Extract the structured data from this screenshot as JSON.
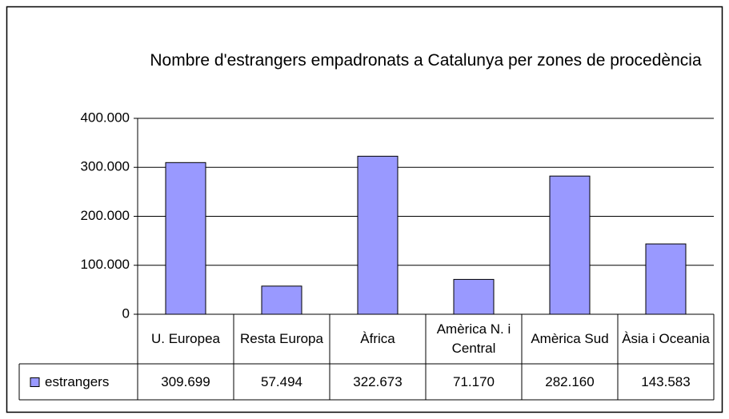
{
  "chart_data": {
    "type": "bar",
    "title": "Nombre d'estrangers empadronats a Catalunya per zones de procedència",
    "categories": [
      "U. Europea",
      "Resta Europa",
      "Àfrica",
      "Amèrica N. i Central",
      "Amèrica Sud",
      "Àsia i Oceania"
    ],
    "series": [
      {
        "name": "estrangers",
        "color": "#9999ff",
        "values": [
          309699,
          57494,
          322673,
          71170,
          282160,
          143583
        ],
        "value_labels": [
          "309.699",
          "57.494",
          "322.673",
          "71.170",
          "282.160",
          "143.583"
        ]
      }
    ],
    "ylim": [
      0,
      400000
    ],
    "yticks": [
      0,
      {
        "value": 100000,
        "label": "100.000"
      },
      {
        "value": 200000,
        "label": "200.000"
      },
      {
        "value": 300000,
        "label": "300.000"
      },
      {
        "value": 400000,
        "label": "400.000"
      }
    ],
    "grid": true
  }
}
